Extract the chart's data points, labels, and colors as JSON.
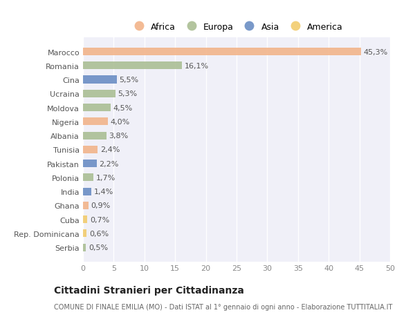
{
  "categories": [
    "Marocco",
    "Romania",
    "Cina",
    "Ucraina",
    "Moldova",
    "Nigeria",
    "Albania",
    "Tunisia",
    "Pakistan",
    "Polonia",
    "India",
    "Ghana",
    "Cuba",
    "Rep. Dominicana",
    "Serbia"
  ],
  "values": [
    45.3,
    16.1,
    5.5,
    5.3,
    4.5,
    4.0,
    3.8,
    2.4,
    2.2,
    1.7,
    1.4,
    0.9,
    0.7,
    0.6,
    0.5
  ],
  "labels": [
    "45,3%",
    "16,1%",
    "5,5%",
    "5,3%",
    "4,5%",
    "4,0%",
    "3,8%",
    "2,4%",
    "2,2%",
    "1,7%",
    "1,4%",
    "0,9%",
    "0,7%",
    "0,6%",
    "0,5%"
  ],
  "continent": [
    "Africa",
    "Europa",
    "Asia",
    "Europa",
    "Europa",
    "Africa",
    "Europa",
    "Africa",
    "Asia",
    "Europa",
    "Asia",
    "Africa",
    "America",
    "America",
    "Europa"
  ],
  "colors": {
    "Africa": "#F2B48A",
    "Europa": "#ABBE94",
    "Asia": "#6B8EC4",
    "America": "#F2CC6E"
  },
  "legend_order": [
    "Africa",
    "Europa",
    "Asia",
    "America"
  ],
  "xlim": [
    0,
    50
  ],
  "xticks": [
    0,
    5,
    10,
    15,
    20,
    25,
    30,
    35,
    40,
    45,
    50
  ],
  "title": "Cittadini Stranieri per Cittadinanza",
  "subtitle": "COMUNE DI FINALE EMILIA (MO) - Dati ISTAT al 1° gennaio di ogni anno - Elaborazione TUTTITALIA.IT",
  "bg_color": "#ffffff",
  "plot_bg_color": "#f0f0f8",
  "grid_color": "#ffffff",
  "bar_height": 0.55,
  "label_fontsize": 8,
  "tick_fontsize": 8,
  "title_fontsize": 10,
  "subtitle_fontsize": 7
}
